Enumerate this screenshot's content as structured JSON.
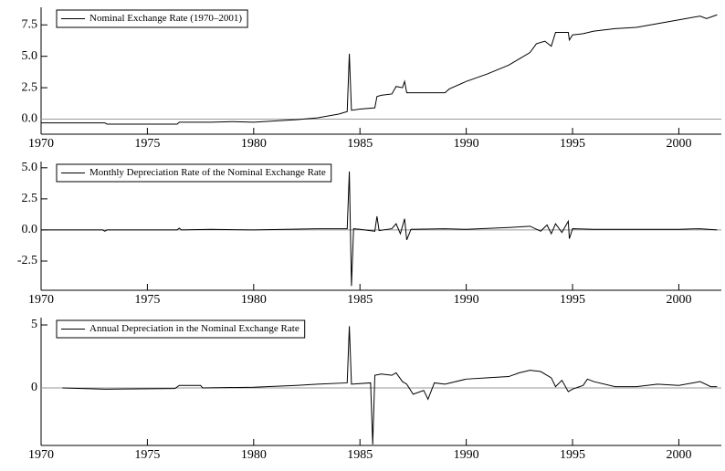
{
  "chart_data": [
    {
      "type": "line",
      "x": [
        1970,
        1973,
        1973.1,
        1976.4,
        1976.5,
        1978,
        1979,
        1980,
        1981,
        1982,
        1983,
        1984,
        1984.4,
        1984.5,
        1984.6,
        1985,
        1985.7,
        1985.8,
        1986,
        1986.5,
        1986.7,
        1987,
        1987.1,
        1987.2,
        1989,
        1989.2,
        1990,
        1991,
        1992,
        1992.5,
        1993,
        1993.3,
        1993.7,
        1994,
        1994.2,
        1994.8,
        1994.85,
        1995,
        1995.5,
        1996,
        1997,
        1998,
        1999,
        2000,
        2001,
        2001.3,
        2001.8
      ],
      "series": [
        {
          "name": "Nominal Exchange Rate (1970–2001)",
          "color": "#000000",
          "values": [
            -0.3,
            -0.3,
            -0.4,
            -0.4,
            -0.25,
            -0.25,
            -0.2,
            -0.25,
            -0.15,
            -0.05,
            0.1,
            0.4,
            0.6,
            5.2,
            0.7,
            0.8,
            0.9,
            1.8,
            1.9,
            2.0,
            2.6,
            2.5,
            3.0,
            2.1,
            2.1,
            2.4,
            3.0,
            3.6,
            4.3,
            4.8,
            5.3,
            6.0,
            6.2,
            5.8,
            6.9,
            6.9,
            6.3,
            6.7,
            6.8,
            7.0,
            7.2,
            7.3,
            7.6,
            7.9,
            8.2,
            8.0,
            8.3
          ]
        }
      ],
      "xlim": [
        1970,
        2002
      ],
      "xticks": [
        1970,
        1975,
        1980,
        1985,
        1990,
        1995,
        2000
      ],
      "ylim": [
        -1.2,
        8.9
      ],
      "yticks": [
        {
          "value": 0,
          "label": "0.0"
        },
        {
          "value": 2.5,
          "label": "2.5"
        },
        {
          "value": 5,
          "label": "5.0"
        },
        {
          "value": 7.5,
          "label": "7.5"
        }
      ],
      "reference_line": 0,
      "legend": "upper left"
    },
    {
      "type": "line",
      "x": [
        1970,
        1972.9,
        1973,
        1973.1,
        1976.4,
        1976.5,
        1976.6,
        1978,
        1980,
        1983,
        1984.4,
        1984.5,
        1984.6,
        1984.7,
        1985,
        1985.7,
        1985.8,
        1985.9,
        1986.5,
        1986.7,
        1986.9,
        1987.1,
        1987.2,
        1987.4,
        1989,
        1990,
        1992,
        1993,
        1993.5,
        1993.8,
        1994,
        1994.2,
        1994.5,
        1994.8,
        1994.85,
        1995,
        1996,
        1998,
        2000,
        2001,
        2001.8
      ],
      "series": [
        {
          "name": "Monthly Depreciation Rate of the Nominal Exchange Rate",
          "color": "#000000",
          "values": [
            0,
            0,
            -0.1,
            0,
            0,
            0.15,
            0,
            0.05,
            0,
            0.1,
            0.1,
            4.7,
            -4.5,
            0.1,
            0.05,
            -0.1,
            1.1,
            -0.05,
            0.1,
            0.5,
            -0.3,
            0.9,
            -0.8,
            0.05,
            0.1,
            0.05,
            0.2,
            0.3,
            -0.1,
            0.4,
            -0.3,
            0.5,
            -0.2,
            0.7,
            -0.7,
            0.1,
            0.05,
            0.05,
            0.05,
            0.1,
            0
          ]
        }
      ],
      "xlim": [
        1970,
        2002
      ],
      "xticks": [
        1970,
        1975,
        1980,
        1985,
        1990,
        1995,
        2000
      ],
      "ylim": [
        -4.85,
        5.5
      ],
      "yticks": [
        {
          "value": -2.5,
          "label": "-2.5"
        },
        {
          "value": 0,
          "label": "0.0"
        },
        {
          "value": 2.5,
          "label": "2.5"
        },
        {
          "value": 5,
          "label": "5.0"
        }
      ],
      "reference_line": 0,
      "legend": "upper left"
    },
    {
      "type": "line",
      "x": [
        1971,
        1973,
        1976.3,
        1976.5,
        1977.5,
        1977.6,
        1980,
        1982,
        1983,
        1984.4,
        1984.5,
        1984.6,
        1985.5,
        1985.6,
        1985.7,
        1986,
        1986.5,
        1986.7,
        1987,
        1987.2,
        1987.5,
        1988,
        1988.2,
        1988.5,
        1989,
        1990,
        1991,
        1992,
        1992.5,
        1993,
        1993.5,
        1994,
        1994.2,
        1994.5,
        1994.8,
        1995,
        1995.5,
        1995.7,
        1996,
        1997,
        1998,
        1999,
        2000,
        2001,
        2001.5,
        2001.8
      ],
      "series": [
        {
          "name": "Annual Depreciation in the Nominal Exchange Rate",
          "color": "#000000",
          "values": [
            0,
            -0.1,
            -0.05,
            0.2,
            0.2,
            0,
            0.05,
            0.2,
            0.3,
            0.4,
            4.9,
            0.3,
            0.4,
            -4.5,
            1.0,
            1.1,
            1.0,
            1.2,
            0.5,
            0.3,
            -0.5,
            -0.2,
            -0.9,
            0.4,
            0.3,
            0.7,
            0.8,
            0.9,
            1.2,
            1.4,
            1.3,
            0.8,
            0.1,
            0.6,
            -0.3,
            -0.1,
            0.2,
            0.7,
            0.5,
            0.1,
            0.1,
            0.3,
            0.2,
            0.5,
            0.1,
            0.1
          ]
        }
      ],
      "xlim": [
        1970,
        2002
      ],
      "xticks": [
        1970,
        1975,
        1980,
        1985,
        1990,
        1995,
        2000
      ],
      "ylim": [
        -4.57,
        5.58
      ],
      "yticks": [
        0,
        5
      ],
      "reference_line": 0,
      "legend": "upper left"
    }
  ]
}
